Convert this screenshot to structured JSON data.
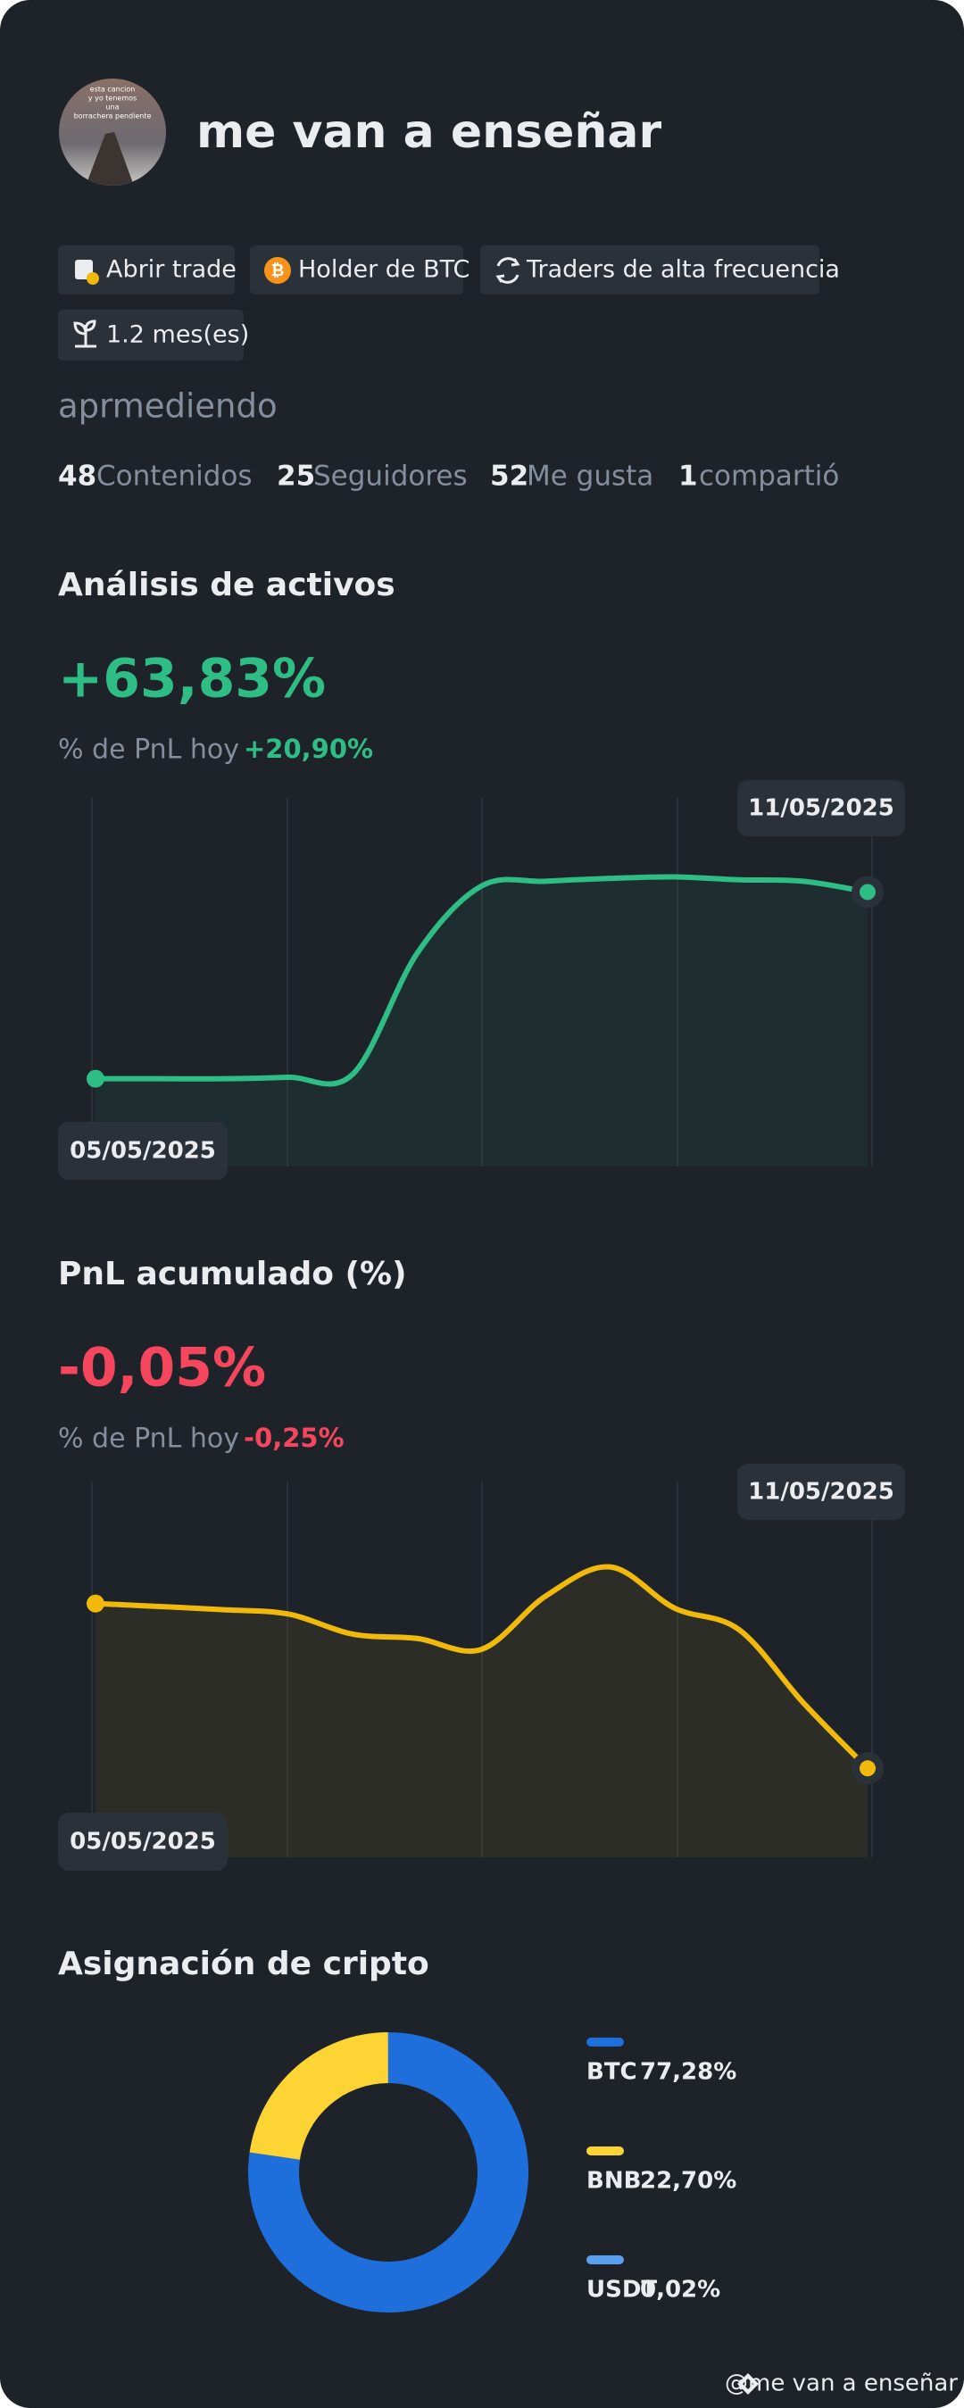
{
  "profile": {
    "name": "me van a enseñar",
    "avatar_text": [
      "esta cancion",
      "y yo tenemos",
      "una",
      "borrachera pendiente"
    ],
    "tags": [
      "Abrir trade",
      "Holder de BTC",
      "Traders de alta frecuencia",
      "1.2 mes(es)"
    ],
    "bio": "aprmediendo",
    "stats": [
      {
        "count": 48,
        "label": "Contenidos"
      },
      {
        "count": 25,
        "label": "Seguidores"
      },
      {
        "count": 52,
        "label": "Me gusta"
      },
      {
        "count": 1,
        "label": "compartió"
      }
    ]
  },
  "asset_analysis": {
    "title": "Análisis de activos",
    "pnl": "+63,83%",
    "today_label": "% de PnL hoy",
    "today_value": "+20,90%",
    "chart": {
      "type": "line",
      "color": "#2ebd85",
      "x": [
        "05/05/2025",
        null,
        null,
        null,
        null,
        null,
        null,
        null,
        null,
        null,
        null,
        null,
        "11/05/2025"
      ],
      "values": [
        0,
        0,
        0,
        0.5,
        1.6,
        42.9,
        65.9,
        67.5,
        68.5,
        69,
        68,
        67.5,
        63.83
      ],
      "ylim": [
        -30,
        96
      ]
    }
  },
  "cumulative_pnl": {
    "title": "PnL acumulado (%)",
    "pnl": "-0,05%",
    "today_label": "% de PnL hoy",
    "today_value": "-0,25%",
    "chart": {
      "type": "line",
      "color": "#f0b90b",
      "x": [
        "05/05/2025",
        null,
        null,
        null,
        null,
        null,
        null,
        null,
        null,
        null,
        null,
        null,
        "11/05/2025"
      ],
      "values": [
        0,
        -0.0009,
        -0.0019,
        -0.0032,
        -0.0093,
        -0.0106,
        -0.0139,
        0.0023,
        0.0111,
        -0.0014,
        -0.0079,
        -0.0301,
        -0.05
      ],
      "ylim": [
        -0.077,
        0.037
      ]
    }
  },
  "allocation": {
    "title": "Asignación de cripto",
    "chart": {
      "type": "pie",
      "categories": [
        "BTC",
        "BNB",
        "USDT"
      ],
      "values": [
        77.28,
        22.7,
        0.02
      ],
      "value_labels": [
        "77,28%",
        "22,70%",
        "0,02%"
      ],
      "colors": [
        "#1e6fdc",
        "#fcd535",
        "#5aa0f0"
      ]
    }
  },
  "footer": {
    "watermark": "@me van a enseñar"
  }
}
